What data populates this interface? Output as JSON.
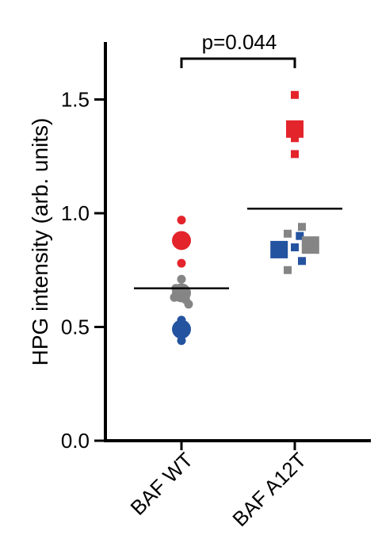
{
  "chart_data": {
    "type": "scatter",
    "title": "",
    "xlabel": "",
    "ylabel": "HPG intensity (arb. units)",
    "ylim": [
      0.0,
      1.5
    ],
    "yticks": [
      "0.0",
      "0.5",
      "1.0",
      "1.5"
    ],
    "ytick_values": [
      0.0,
      0.5,
      1.0,
      1.5
    ],
    "categories": [
      "BAF WT",
      "BAF A12T"
    ],
    "grid": false,
    "legend": "none",
    "colors": {
      "red": "#e3242b",
      "gray": "#858585",
      "blue": "#2453a0"
    },
    "annotation": "p=0.044",
    "means": [
      0.67,
      1.02
    ],
    "points": [
      {
        "category": "BAF WT",
        "marker": "circle",
        "color": "red",
        "size": "small",
        "y": 0.97,
        "offset": 0.0
      },
      {
        "category": "BAF WT",
        "marker": "circle",
        "color": "red",
        "size": "large",
        "y": 0.88,
        "offset": 0.0
      },
      {
        "category": "BAF WT",
        "marker": "circle",
        "color": "red",
        "size": "small",
        "y": 0.78,
        "offset": 0.0
      },
      {
        "category": "BAF WT",
        "marker": "circle",
        "color": "gray",
        "size": "small",
        "y": 0.71,
        "offset": 0.0
      },
      {
        "category": "BAF WT",
        "marker": "circle",
        "color": "gray",
        "size": "small",
        "y": 0.67,
        "offset": -0.08
      },
      {
        "category": "BAF WT",
        "marker": "circle",
        "color": "gray",
        "size": "large",
        "y": 0.65,
        "offset": 0.0
      },
      {
        "category": "BAF WT",
        "marker": "circle",
        "color": "gray",
        "size": "small",
        "y": 0.63,
        "offset": -0.1
      },
      {
        "category": "BAF WT",
        "marker": "circle",
        "color": "gray",
        "size": "small",
        "y": 0.62,
        "offset": 0.06
      },
      {
        "category": "BAF WT",
        "marker": "circle",
        "color": "gray",
        "size": "small",
        "y": 0.6,
        "offset": 0.1
      },
      {
        "category": "BAF WT",
        "marker": "circle",
        "color": "blue",
        "size": "small",
        "y": 0.53,
        "offset": 0.0
      },
      {
        "category": "BAF WT",
        "marker": "circle",
        "color": "blue",
        "size": "large",
        "y": 0.49,
        "offset": 0.0
      },
      {
        "category": "BAF WT",
        "marker": "circle",
        "color": "blue",
        "size": "small",
        "y": 0.47,
        "offset": -0.03
      },
      {
        "category": "BAF WT",
        "marker": "circle",
        "color": "blue",
        "size": "small",
        "y": 0.44,
        "offset": 0.0
      },
      {
        "category": "BAF A12T",
        "marker": "square",
        "color": "red",
        "size": "small",
        "y": 1.52,
        "offset": 0.0
      },
      {
        "category": "BAF A12T",
        "marker": "square",
        "color": "red",
        "size": "large",
        "y": 1.37,
        "offset": 0.0
      },
      {
        "category": "BAF A12T",
        "marker": "square",
        "color": "red",
        "size": "small",
        "y": 1.33,
        "offset": 0.0
      },
      {
        "category": "BAF A12T",
        "marker": "square",
        "color": "red",
        "size": "small",
        "y": 1.26,
        "offset": 0.0
      },
      {
        "category": "BAF A12T",
        "marker": "square",
        "color": "gray",
        "size": "small",
        "y": 0.94,
        "offset": 0.1
      },
      {
        "category": "BAF A12T",
        "marker": "square",
        "color": "gray",
        "size": "small",
        "y": 0.91,
        "offset": -0.1
      },
      {
        "category": "BAF A12T",
        "marker": "square",
        "color": "blue",
        "size": "small",
        "y": 0.9,
        "offset": 0.07
      },
      {
        "category": "BAF A12T",
        "marker": "square",
        "color": "gray",
        "size": "large",
        "y": 0.86,
        "offset": 0.22
      },
      {
        "category": "BAF A12T",
        "marker": "square",
        "color": "blue",
        "size": "large",
        "y": 0.84,
        "offset": -0.22
      },
      {
        "category": "BAF A12T",
        "marker": "square",
        "color": "blue",
        "size": "small",
        "y": 0.85,
        "offset": 0.0
      },
      {
        "category": "BAF A12T",
        "marker": "square",
        "color": "blue",
        "size": "small",
        "y": 0.79,
        "offset": 0.1
      },
      {
        "category": "BAF A12T",
        "marker": "square",
        "color": "gray",
        "size": "small",
        "y": 0.75,
        "offset": -0.1
      }
    ]
  }
}
